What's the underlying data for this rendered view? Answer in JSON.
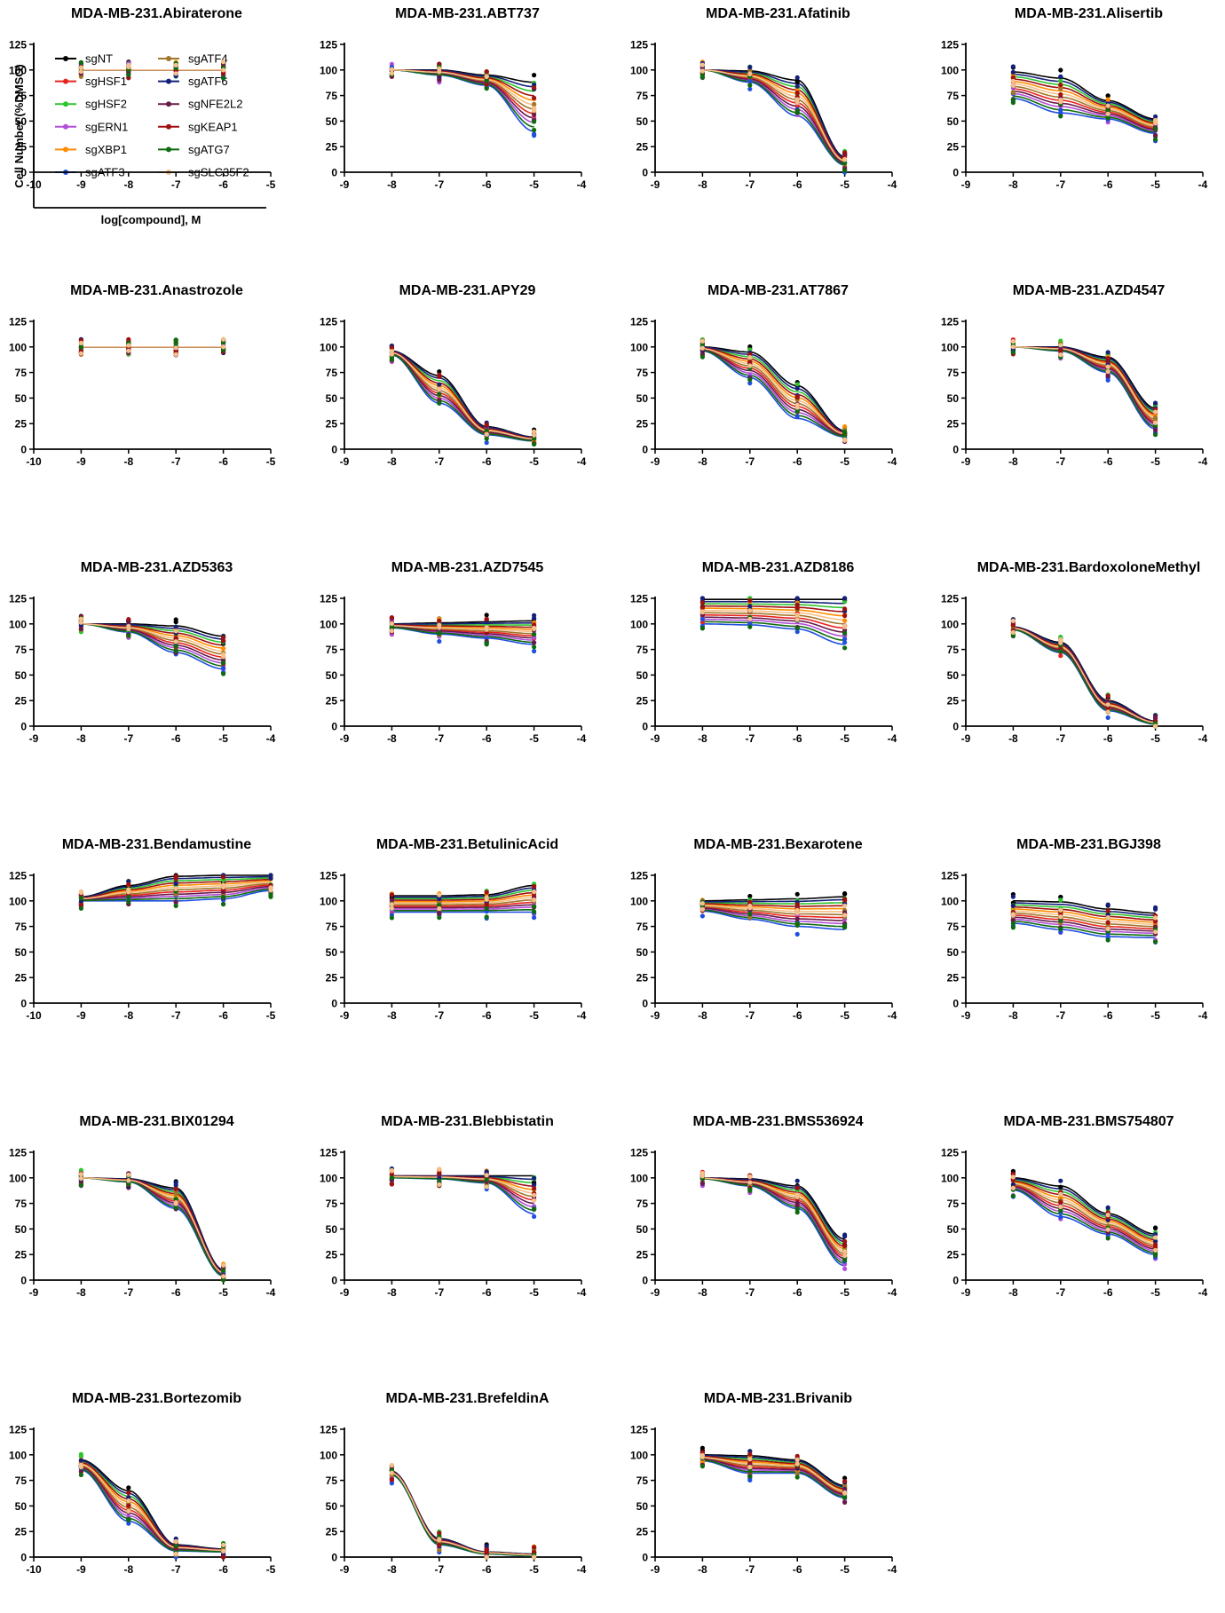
{
  "figure": {
    "ylabel": "Cell Number (%DMSO)",
    "xlabel": "log[compound], M"
  },
  "legend": [
    {
      "name": "sgNT",
      "color": "#000000"
    },
    {
      "name": "sgHSF1",
      "color": "#e8231e"
    },
    {
      "name": "sgHSF2",
      "color": "#2ec42e"
    },
    {
      "name": "sgERN1",
      "color": "#b24fd8"
    },
    {
      "name": "sgXBP1",
      "color": "#ff8c00"
    },
    {
      "name": "sgATF3",
      "color": "#1f4fe0"
    },
    {
      "name": "sgATF4",
      "color": "#a0762b"
    },
    {
      "name": "sgATF6",
      "color": "#14207a"
    },
    {
      "name": "sgNFE2L2",
      "color": "#6a1a4a"
    },
    {
      "name": "sgKEAP1",
      "color": "#a01010"
    },
    {
      "name": "sgATG7",
      "color": "#0e6b0e"
    },
    {
      "name": "sgSLC35F2",
      "color": "#f5c08a"
    }
  ],
  "chart_data": [
    {
      "type": "scatter",
      "title": "MDA-MB-231.Abiraterone",
      "x": [
        -9,
        -8,
        -7,
        -6
      ],
      "xlim": [
        -10,
        -5
      ],
      "ylim": [
        0,
        125
      ],
      "xticks": [
        -10,
        -9,
        -8,
        -7,
        -6,
        -5
      ],
      "yticks": [
        0,
        25,
        50,
        75,
        100,
        125
      ],
      "top": [
        100,
        100,
        100,
        100
      ],
      "bottom": [
        100,
        100,
        100,
        100
      ]
    },
    {
      "type": "scatter",
      "title": "MDA-MB-231.ABT737",
      "x": [
        -8,
        -7,
        -6,
        -5
      ],
      "xlim": [
        -9,
        -4
      ],
      "ylim": [
        0,
        125
      ],
      "xticks": [
        -9,
        -8,
        -7,
        -6,
        -5,
        -4
      ],
      "yticks": [
        0,
        25,
        50,
        75,
        100,
        125
      ],
      "top": [
        100,
        100,
        95,
        88
      ],
      "bottom": [
        100,
        95,
        85,
        40
      ]
    },
    {
      "type": "scatter",
      "title": "MDA-MB-231.Afatinib",
      "x": [
        -8,
        -7,
        -6,
        -5
      ],
      "xlim": [
        -9,
        -4
      ],
      "ylim": [
        0,
        125
      ],
      "xticks": [
        -9,
        -8,
        -7,
        -6,
        -5,
        -4
      ],
      "yticks": [
        0,
        25,
        50,
        75,
        100,
        125
      ],
      "top": [
        100,
        99,
        90,
        15
      ],
      "bottom": [
        100,
        88,
        55,
        7
      ]
    },
    {
      "type": "scatter",
      "title": "MDA-MB-231.Alisertib",
      "x": [
        -8,
        -7,
        -6,
        -5
      ],
      "xlim": [
        -9,
        -4
      ],
      "ylim": [
        0,
        125
      ],
      "xticks": [
        -9,
        -8,
        -7,
        -6,
        -5,
        -4
      ],
      "yticks": [
        0,
        25,
        50,
        75,
        100,
        125
      ],
      "top": [
        98,
        92,
        70,
        52
      ],
      "bottom": [
        72,
        58,
        52,
        38
      ]
    },
    {
      "type": "scatter",
      "title": "MDA-MB-231.Anastrozole",
      "x": [
        -9,
        -8,
        -7,
        -6
      ],
      "xlim": [
        -10,
        -5
      ],
      "ylim": [
        0,
        125
      ],
      "xticks": [
        -10,
        -9,
        -8,
        -7,
        -6,
        -5
      ],
      "yticks": [
        0,
        25,
        50,
        75,
        100,
        125
      ],
      "top": [
        100,
        100,
        100,
        100
      ],
      "bottom": [
        100,
        100,
        100,
        100
      ]
    },
    {
      "type": "scatter",
      "title": "MDA-MB-231.APY29",
      "x": [
        -8,
        -7,
        -6,
        -5
      ],
      "xlim": [
        -9,
        -4
      ],
      "ylim": [
        0,
        125
      ],
      "xticks": [
        -9,
        -8,
        -7,
        -6,
        -5,
        -4
      ],
      "yticks": [
        0,
        25,
        50,
        75,
        100,
        125
      ],
      "top": [
        96,
        72,
        22,
        12
      ],
      "bottom": [
        92,
        45,
        14,
        8
      ]
    },
    {
      "type": "scatter",
      "title": "MDA-MB-231.AT7867",
      "x": [
        -8,
        -7,
        -6,
        -5
      ],
      "xlim": [
        -9,
        -4
      ],
      "ylim": [
        0,
        125
      ],
      "xticks": [
        -9,
        -8,
        -7,
        -6,
        -5,
        -4
      ],
      "yticks": [
        0,
        25,
        50,
        75,
        100,
        125
      ],
      "top": [
        100,
        95,
        62,
        18
      ],
      "bottom": [
        96,
        70,
        30,
        12
      ]
    },
    {
      "type": "scatter",
      "title": "MDA-MB-231.AZD4547",
      "x": [
        -8,
        -7,
        -6,
        -5
      ],
      "xlim": [
        -9,
        -4
      ],
      "ylim": [
        0,
        125
      ],
      "xticks": [
        -9,
        -8,
        -7,
        -6,
        -5,
        -4
      ],
      "yticks": [
        0,
        25,
        50,
        75,
        100,
        125
      ],
      "top": [
        100,
        100,
        90,
        40
      ],
      "bottom": [
        100,
        96,
        75,
        20
      ]
    },
    {
      "type": "scatter",
      "title": "MDA-MB-231.AZD5363",
      "x": [
        -8,
        -7,
        -6,
        -5
      ],
      "xlim": [
        -9,
        -4
      ],
      "ylim": [
        0,
        125
      ],
      "xticks": [
        -9,
        -8,
        -7,
        -6,
        -5,
        -4
      ],
      "yticks": [
        0,
        25,
        50,
        75,
        100,
        125
      ],
      "top": [
        100,
        100,
        98,
        88
      ],
      "bottom": [
        100,
        92,
        72,
        56
      ]
    },
    {
      "type": "scatter",
      "title": "MDA-MB-231.AZD7545",
      "x": [
        -8,
        -7,
        -6,
        -5
      ],
      "xlim": [
        -9,
        -4
      ],
      "ylim": [
        0,
        125
      ],
      "xticks": [
        -9,
        -8,
        -7,
        -6,
        -5,
        -4
      ],
      "yticks": [
        0,
        25,
        50,
        75,
        100,
        125
      ],
      "top": [
        100,
        101,
        102,
        103
      ],
      "bottom": [
        96,
        90,
        86,
        80
      ]
    },
    {
      "type": "scatter",
      "title": "MDA-MB-231.AZD8186",
      "x": [
        -8,
        -7,
        -6,
        -5
      ],
      "xlim": [
        -9,
        -4
      ],
      "ylim": [
        0,
        125
      ],
      "xticks": [
        -9,
        -8,
        -7,
        -6,
        -5,
        -4
      ],
      "yticks": [
        0,
        25,
        50,
        75,
        100,
        125
      ],
      "top": [
        124,
        124,
        124,
        124
      ],
      "bottom": [
        100,
        99,
        95,
        80
      ]
    },
    {
      "type": "scatter",
      "title": "MDA-MB-231.BardoxoloneMethyl",
      "x": [
        -8,
        -7,
        -6,
        -5
      ],
      "xlim": [
        -9,
        -4
      ],
      "ylim": [
        0,
        125
      ],
      "xticks": [
        -9,
        -8,
        -7,
        -6,
        -5,
        -4
      ],
      "yticks": [
        0,
        25,
        50,
        75,
        100,
        125
      ],
      "top": [
        97,
        82,
        25,
        5
      ],
      "bottom": [
        94,
        72,
        15,
        2
      ]
    },
    {
      "type": "scatter",
      "title": "MDA-MB-231.Bendamustine",
      "x": [
        -9,
        -8,
        -7,
        -6,
        -5
      ],
      "xlim": [
        -10,
        -5
      ],
      "ylim": [
        0,
        125
      ],
      "xticks": [
        -10,
        -9,
        -8,
        -7,
        -6,
        -5
      ],
      "yticks": [
        0,
        25,
        50,
        75,
        100,
        125
      ],
      "top": [
        104,
        115,
        124,
        125,
        125
      ],
      "bottom": [
        100,
        100,
        100,
        102,
        110
      ]
    },
    {
      "type": "scatter",
      "title": "MDA-MB-231.BetulinicAcid",
      "x": [
        -8,
        -7,
        -6,
        -5
      ],
      "xlim": [
        -9,
        -4
      ],
      "ylim": [
        0,
        125
      ],
      "xticks": [
        -9,
        -8,
        -7,
        -6,
        -5,
        -4
      ],
      "yticks": [
        0,
        25,
        50,
        75,
        100,
        125
      ],
      "top": [
        105,
        105,
        106,
        115
      ],
      "bottom": [
        89,
        89,
        89,
        89
      ]
    },
    {
      "type": "scatter",
      "title": "MDA-MB-231.Bexarotene",
      "x": [
        -8,
        -7,
        -6,
        -5
      ],
      "xlim": [
        -9,
        -4
      ],
      "ylim": [
        0,
        125
      ],
      "xticks": [
        -9,
        -8,
        -7,
        -6,
        -5,
        -4
      ],
      "yticks": [
        0,
        25,
        50,
        75,
        100,
        125
      ],
      "top": [
        100,
        101,
        102,
        104
      ],
      "bottom": [
        90,
        82,
        75,
        72
      ]
    },
    {
      "type": "scatter",
      "title": "MDA-MB-231.BGJ398",
      "x": [
        -8,
        -7,
        -6,
        -5
      ],
      "xlim": [
        -9,
        -4
      ],
      "ylim": [
        0,
        125
      ],
      "xticks": [
        -9,
        -8,
        -7,
        -6,
        -5,
        -4
      ],
      "yticks": [
        0,
        25,
        50,
        75,
        100,
        125
      ],
      "top": [
        100,
        99,
        92,
        88
      ],
      "bottom": [
        78,
        72,
        65,
        64
      ]
    },
    {
      "type": "scatter",
      "title": "MDA-MB-231.BIX01294",
      "x": [
        -8,
        -7,
        -6,
        -5
      ],
      "xlim": [
        -9,
        -4
      ],
      "ylim": [
        0,
        125
      ],
      "xticks": [
        -9,
        -8,
        -7,
        -6,
        -5,
        -4
      ],
      "yticks": [
        0,
        25,
        50,
        75,
        100,
        125
      ],
      "top": [
        100,
        99,
        90,
        10
      ],
      "bottom": [
        100,
        96,
        70,
        4
      ]
    },
    {
      "type": "scatter",
      "title": "MDA-MB-231.Blebbistatin",
      "x": [
        -8,
        -7,
        -6,
        -5
      ],
      "xlim": [
        -9,
        -4
      ],
      "ylim": [
        0,
        125
      ],
      "xticks": [
        -9,
        -8,
        -7,
        -6,
        -5,
        -4
      ],
      "yticks": [
        0,
        25,
        50,
        75,
        100,
        125
      ],
      "top": [
        102,
        102,
        102,
        102
      ],
      "bottom": [
        100,
        99,
        95,
        65
      ]
    },
    {
      "type": "scatter",
      "title": "MDA-MB-231.BMS536924",
      "x": [
        -8,
        -7,
        -6,
        -5
      ],
      "xlim": [
        -9,
        -4
      ],
      "ylim": [
        0,
        125
      ],
      "xticks": [
        -9,
        -8,
        -7,
        -6,
        -5,
        -4
      ],
      "yticks": [
        0,
        25,
        50,
        75,
        100,
        125
      ],
      "top": [
        100,
        99,
        92,
        40
      ],
      "bottom": [
        99,
        92,
        70,
        14
      ]
    },
    {
      "type": "scatter",
      "title": "MDA-MB-231.BMS754807",
      "x": [
        -8,
        -7,
        -6,
        -5
      ],
      "xlim": [
        -9,
        -4
      ],
      "ylim": [
        0,
        125
      ],
      "xticks": [
        -9,
        -8,
        -7,
        -6,
        -5,
        -4
      ],
      "yticks": [
        0,
        25,
        50,
        75,
        100,
        125
      ],
      "top": [
        100,
        92,
        65,
        45
      ],
      "bottom": [
        88,
        62,
        45,
        25
      ]
    },
    {
      "type": "scatter",
      "title": "MDA-MB-231.Bortezomib",
      "x": [
        -9,
        -8,
        -7,
        -6
      ],
      "xlim": [
        -10,
        -5
      ],
      "ylim": [
        0,
        125
      ],
      "xticks": [
        -10,
        -9,
        -8,
        -7,
        -6,
        -5
      ],
      "yticks": [
        0,
        25,
        50,
        75,
        100,
        125
      ],
      "top": [
        95,
        65,
        12,
        8
      ],
      "bottom": [
        85,
        35,
        6,
        5
      ]
    },
    {
      "type": "scatter",
      "title": "MDA-MB-231.BrefeldinA",
      "x": [
        -8,
        -7,
        -6,
        -5
      ],
      "xlim": [
        -9,
        -4
      ],
      "ylim": [
        0,
        125
      ],
      "xticks": [
        -9,
        -8,
        -7,
        -6,
        -5,
        -4
      ],
      "yticks": [
        0,
        25,
        50,
        75,
        100,
        125
      ],
      "top": [
        84,
        18,
        5,
        3
      ],
      "bottom": [
        80,
        12,
        3,
        1
      ]
    },
    {
      "type": "scatter",
      "title": "MDA-MB-231.Brivanib",
      "x": [
        -8,
        -7,
        -6,
        -5
      ],
      "xlim": [
        -9,
        -4
      ],
      "ylim": [
        0,
        125
      ],
      "xticks": [
        -9,
        -8,
        -7,
        -6,
        -5,
        -4
      ],
      "yticks": [
        0,
        25,
        50,
        75,
        100,
        125
      ],
      "top": [
        100,
        99,
        95,
        70
      ],
      "bottom": [
        94,
        82,
        82,
        58
      ]
    }
  ]
}
